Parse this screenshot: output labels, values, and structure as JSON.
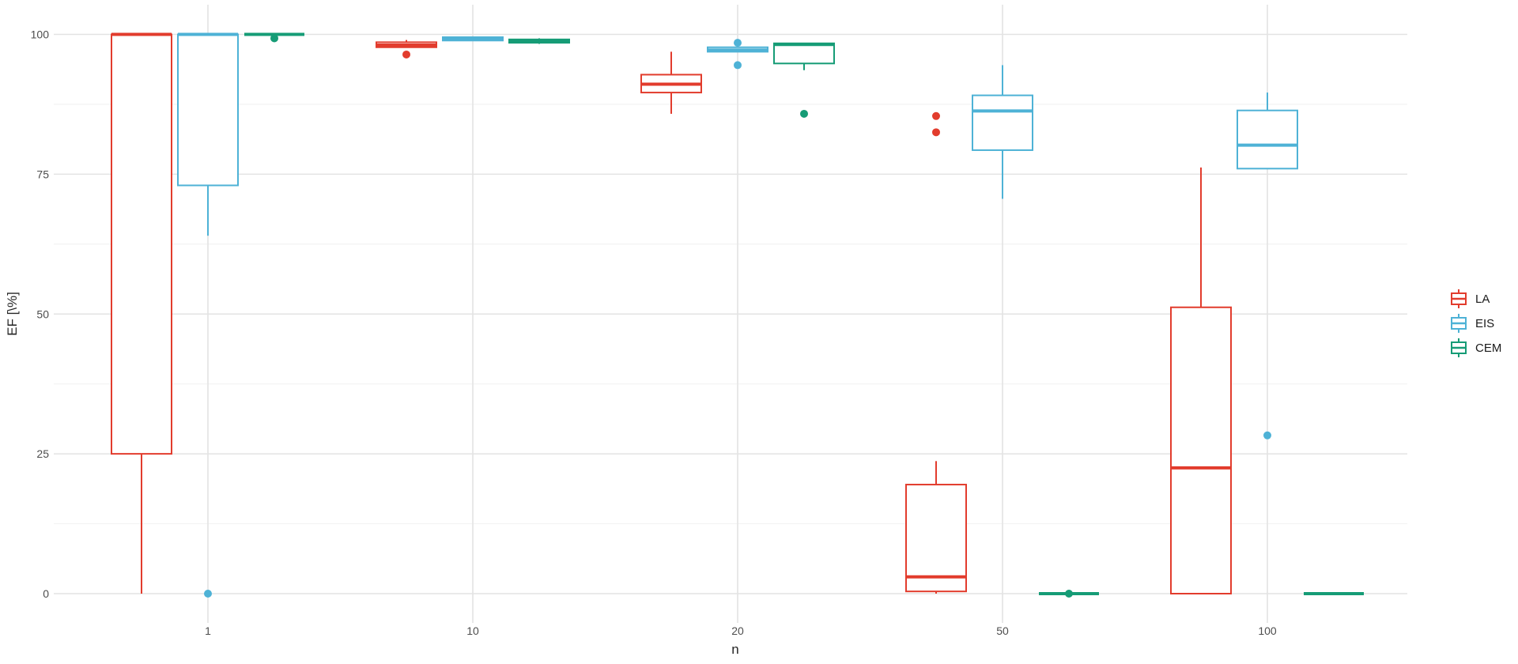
{
  "axes": {
    "x_title": "n",
    "y_title": "EF [\\%]",
    "x_tick_labels": [
      "1",
      "10",
      "20",
      "50",
      "100"
    ],
    "y_tick_labels": [
      "0",
      "25",
      "50",
      "75",
      "100"
    ]
  },
  "legend": {
    "position": "right",
    "items": [
      {
        "label": "LA",
        "color": "#e23c2d"
      },
      {
        "label": "EIS",
        "color": "#4eb2d6"
      },
      {
        "label": "CEM",
        "color": "#169c76"
      }
    ]
  },
  "colors": {
    "background": "#ffffff",
    "grid_major": "#e3e3e3",
    "grid_minor": "#f2f2f2",
    "axis_text": "#4d4d4d",
    "box_fill": "#ffffff"
  },
  "chart_data": {
    "type": "boxplot",
    "title": "",
    "xlabel": "n",
    "ylabel": "EF [\\%]",
    "categories": [
      "1",
      "10",
      "20",
      "50",
      "100"
    ],
    "ylim": [
      0,
      100
    ],
    "y_ticks": [
      0,
      25,
      50,
      75,
      100
    ],
    "y_minor_ticks": [
      12.5,
      37.5,
      62.5,
      87.5
    ],
    "grid": "horizontal major+minor, vertical major at categories",
    "legend_position": "right",
    "series": [
      {
        "name": "LA",
        "color": "#e23c2d",
        "boxes": [
          {
            "category": "1",
            "low": 0,
            "q1": 25,
            "median": 100,
            "q3": 100,
            "high": 100,
            "outliers": []
          },
          {
            "category": "10",
            "low": 97.7,
            "q1": 97.7,
            "median": 98.1,
            "q3": 98.6,
            "high": 99.0,
            "outliers": [
              96.4
            ]
          },
          {
            "category": "20",
            "low": 85.8,
            "q1": 89.6,
            "median": 91.1,
            "q3": 92.8,
            "high": 96.9,
            "outliers": []
          },
          {
            "category": "50",
            "low": 0,
            "q1": 0.4,
            "median": 3.0,
            "q3": 19.5,
            "high": 23.7,
            "outliers": [
              85.4,
              82.5
            ]
          },
          {
            "category": "100",
            "low": 0,
            "q1": 0,
            "median": 22.5,
            "q3": 51.2,
            "high": 76.2,
            "outliers": []
          }
        ]
      },
      {
        "name": "EIS",
        "color": "#4eb2d6",
        "boxes": [
          {
            "category": "1",
            "low": 64,
            "q1": 73,
            "median": 100,
            "q3": 100,
            "high": 100,
            "outliers": [
              0
            ]
          },
          {
            "category": "10",
            "low": 98.8,
            "q1": 98.9,
            "median": 99.2,
            "q3": 99.5,
            "high": 99.5,
            "outliers": []
          },
          {
            "category": "20",
            "low": 96.9,
            "q1": 96.9,
            "median": 97.2,
            "q3": 97.7,
            "high": 97.7,
            "outliers": [
              98.5,
              94.5
            ]
          },
          {
            "category": "50",
            "low": 70.6,
            "q1": 79.3,
            "median": 86.3,
            "q3": 89.1,
            "high": 94.5,
            "outliers": []
          },
          {
            "category": "100",
            "low": 76.0,
            "q1": 76.0,
            "median": 80.2,
            "q3": 86.4,
            "high": 89.6,
            "outliers": [
              28.3
            ]
          }
        ]
      },
      {
        "name": "CEM",
        "color": "#169c76",
        "boxes": [
          {
            "category": "1",
            "low": 100,
            "q1": 100,
            "median": 100,
            "q3": 100,
            "high": 100,
            "outliers": [
              99.3
            ]
          },
          {
            "category": "10",
            "low": 98.3,
            "q1": 98.5,
            "median": 98.8,
            "q3": 99.1,
            "high": 99.3,
            "outliers": []
          },
          {
            "category": "20",
            "low": 93.6,
            "q1": 94.8,
            "median": 98.2,
            "q3": 98.4,
            "high": 98.4,
            "outliers": [
              85.8
            ]
          },
          {
            "category": "50",
            "low": 0,
            "q1": 0,
            "median": 0,
            "q3": 0,
            "high": 0,
            "outliers": [
              0
            ]
          },
          {
            "category": "100",
            "low": 0,
            "q1": 0,
            "median": 0,
            "q3": 0,
            "high": 0,
            "outliers": []
          }
        ]
      }
    ]
  }
}
